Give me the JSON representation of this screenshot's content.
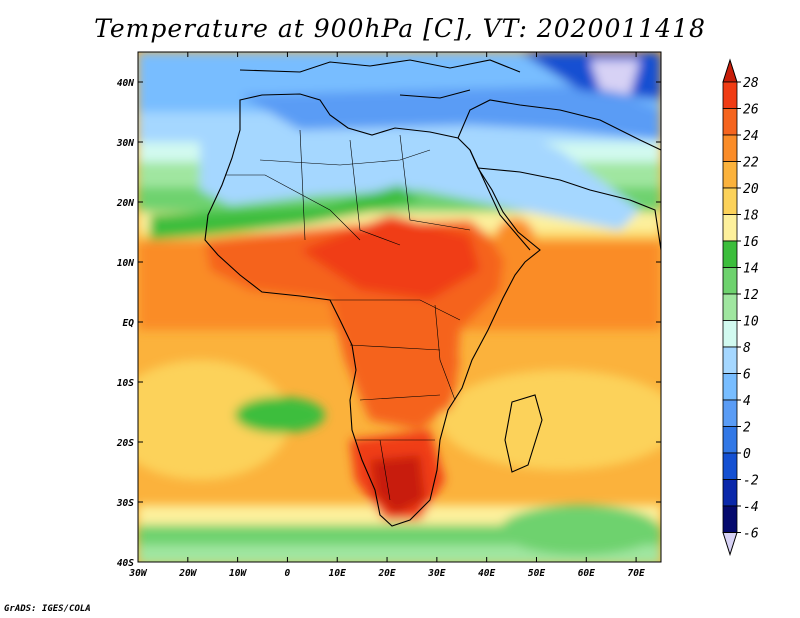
{
  "title": "Temperature at 900hPa [C], VT: 2020011418",
  "credit": "GrADS: IGES/COLA",
  "map": {
    "variable": "Temperature at 900hPa",
    "units": "C",
    "valid_time": "2020011418",
    "lon_range": [
      -30,
      75
    ],
    "lat_range": [
      -40,
      45
    ],
    "lon_ticks": [
      "30W",
      "20W",
      "10W",
      "0",
      "10E",
      "20E",
      "30E",
      "40E",
      "50E",
      "60E",
      "70E"
    ],
    "lat_ticks": [
      "40N",
      "30N",
      "20N",
      "10N",
      "EQ",
      "10S",
      "20S",
      "30S",
      "40S"
    ]
  },
  "colorbar": {
    "levels": [
      "28",
      "26",
      "24",
      "22",
      "20",
      "18",
      "16",
      "14",
      "12",
      "10",
      "8",
      "6",
      "4",
      "2",
      "0",
      "-2",
      "-4",
      "-6"
    ],
    "colors": [
      "#c81e0a",
      "#f03c14",
      "#f5641e",
      "#fa8c28",
      "#fbb23c",
      "#fcd25a",
      "#fdf09c",
      "#3cbe3c",
      "#6ed26e",
      "#a0e6a0",
      "#d2faf0",
      "#a5d7ff",
      "#78bdff",
      "#5a9cf5",
      "#3278e6",
      "#1450d2",
      "#0a28aa",
      "#050a6e",
      "#d7d2f5"
    ]
  }
}
